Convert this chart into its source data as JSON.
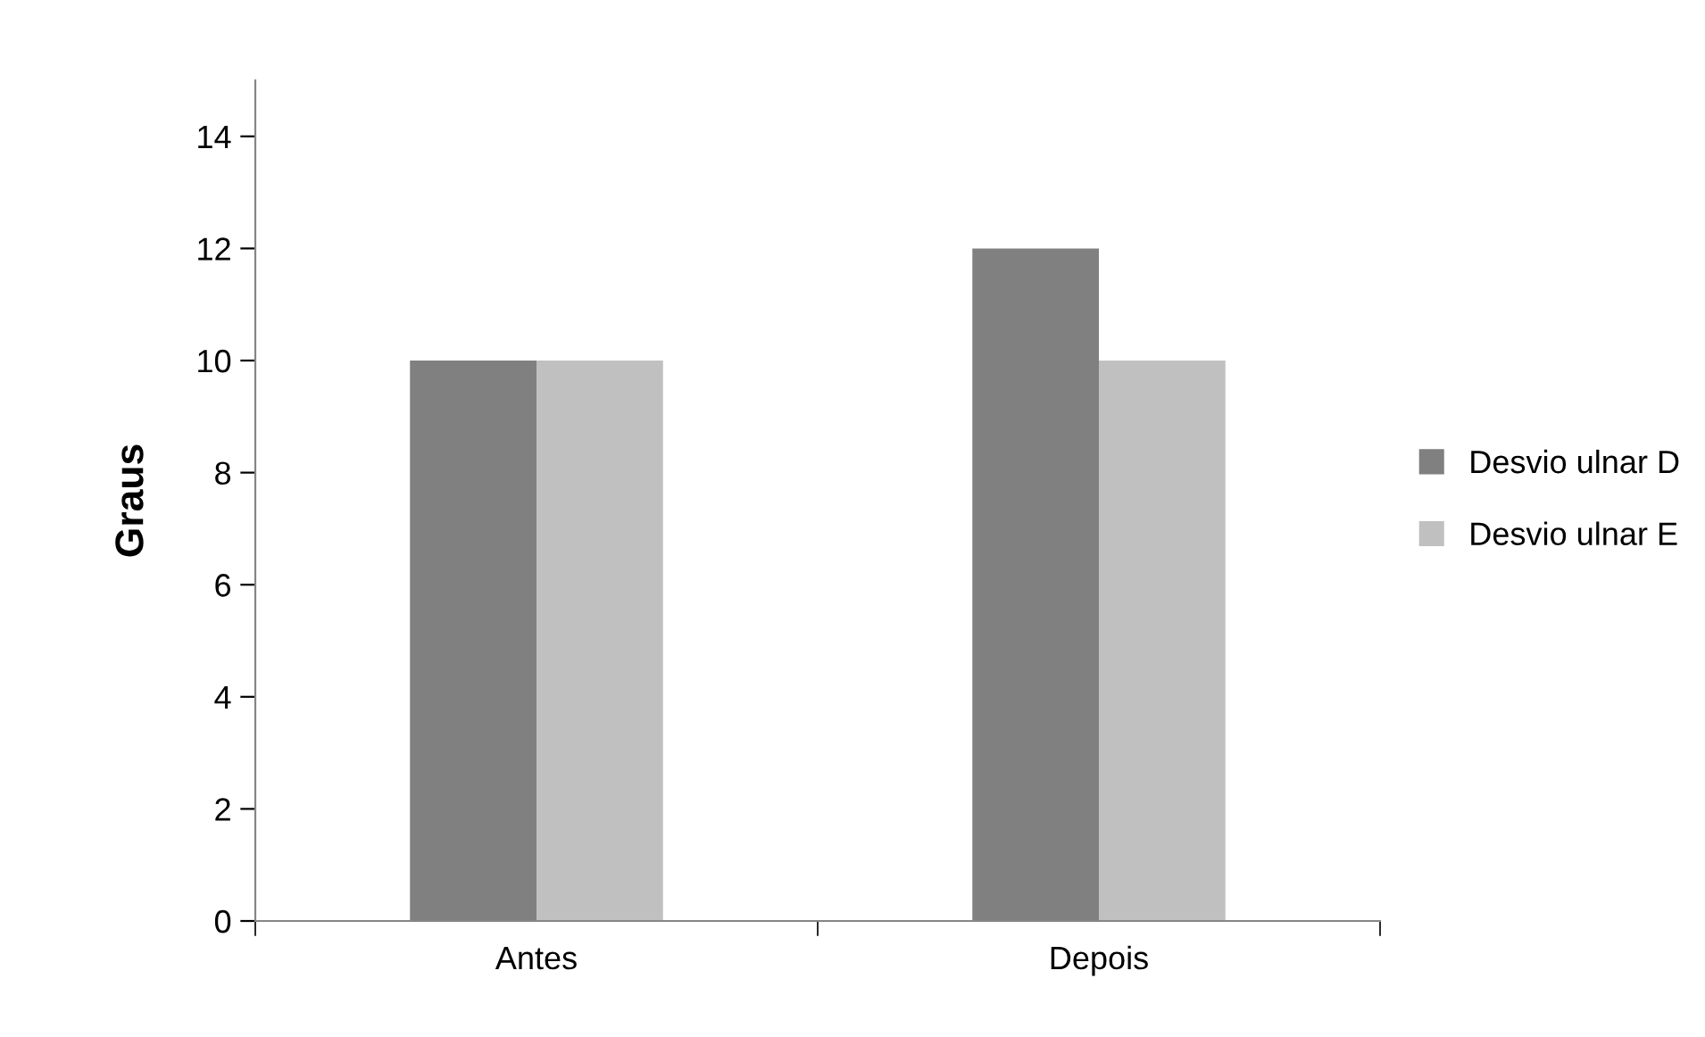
{
  "chart_data": {
    "type": "bar",
    "ylabel": "Graus",
    "categories": [
      "Antes",
      "Depois"
    ],
    "series": [
      {
        "name": "Desvio ulnar D",
        "color": "#808080",
        "values": [
          10,
          12
        ]
      },
      {
        "name": "Desvio ulnar E",
        "color": "#c0c0c0",
        "values": [
          10,
          10
        ]
      }
    ],
    "ylim": [
      0,
      15
    ],
    "yticks": [
      0,
      2,
      4,
      6,
      8,
      10,
      12,
      14
    ],
    "grid": false,
    "legend": "right"
  }
}
